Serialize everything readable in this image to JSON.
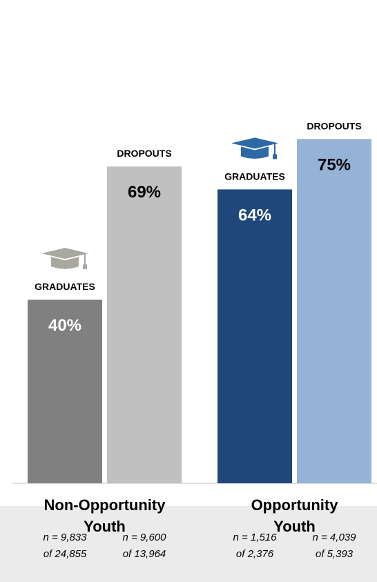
{
  "chart_data": {
    "type": "bar",
    "ylim": [
      0,
      100
    ],
    "groups": [
      {
        "label_lines": [
          "Non-Opportunity",
          "Youth"
        ],
        "bars": [
          {
            "series": "GRADUATES",
            "value": 40,
            "value_label": "40%",
            "color": "#808080",
            "text_color": "#ffffff",
            "icon": "graduation-cap-icon",
            "icon_color": "#a9a89e",
            "n_label": "n = 9,833",
            "of_label": "of 24,855"
          },
          {
            "series": "DROPOUTS",
            "value": 69,
            "value_label": "69%",
            "color": "#c0c0c0",
            "text_color": "#000000",
            "icon": null,
            "n_label": "n = 9,600",
            "of_label": "of 13,964"
          }
        ]
      },
      {
        "label_lines": [
          "Opportunity",
          "Youth"
        ],
        "bars": [
          {
            "series": "GRADUATES",
            "value": 64,
            "value_label": "64%",
            "color": "#1f477a",
            "text_color": "#ffffff",
            "icon": "graduation-cap-icon",
            "icon_color": "#2e68a6",
            "n_label": "n = 1,516",
            "of_label": "of 2,376"
          },
          {
            "series": "DROPOUTS",
            "value": 75,
            "value_label": "75%",
            "color": "#95b3d7",
            "text_color": "#000000",
            "icon": null,
            "n_label": "n = 4,039",
            "of_label": "of 5,393"
          }
        ]
      }
    ],
    "grid": false,
    "legend": "none"
  }
}
